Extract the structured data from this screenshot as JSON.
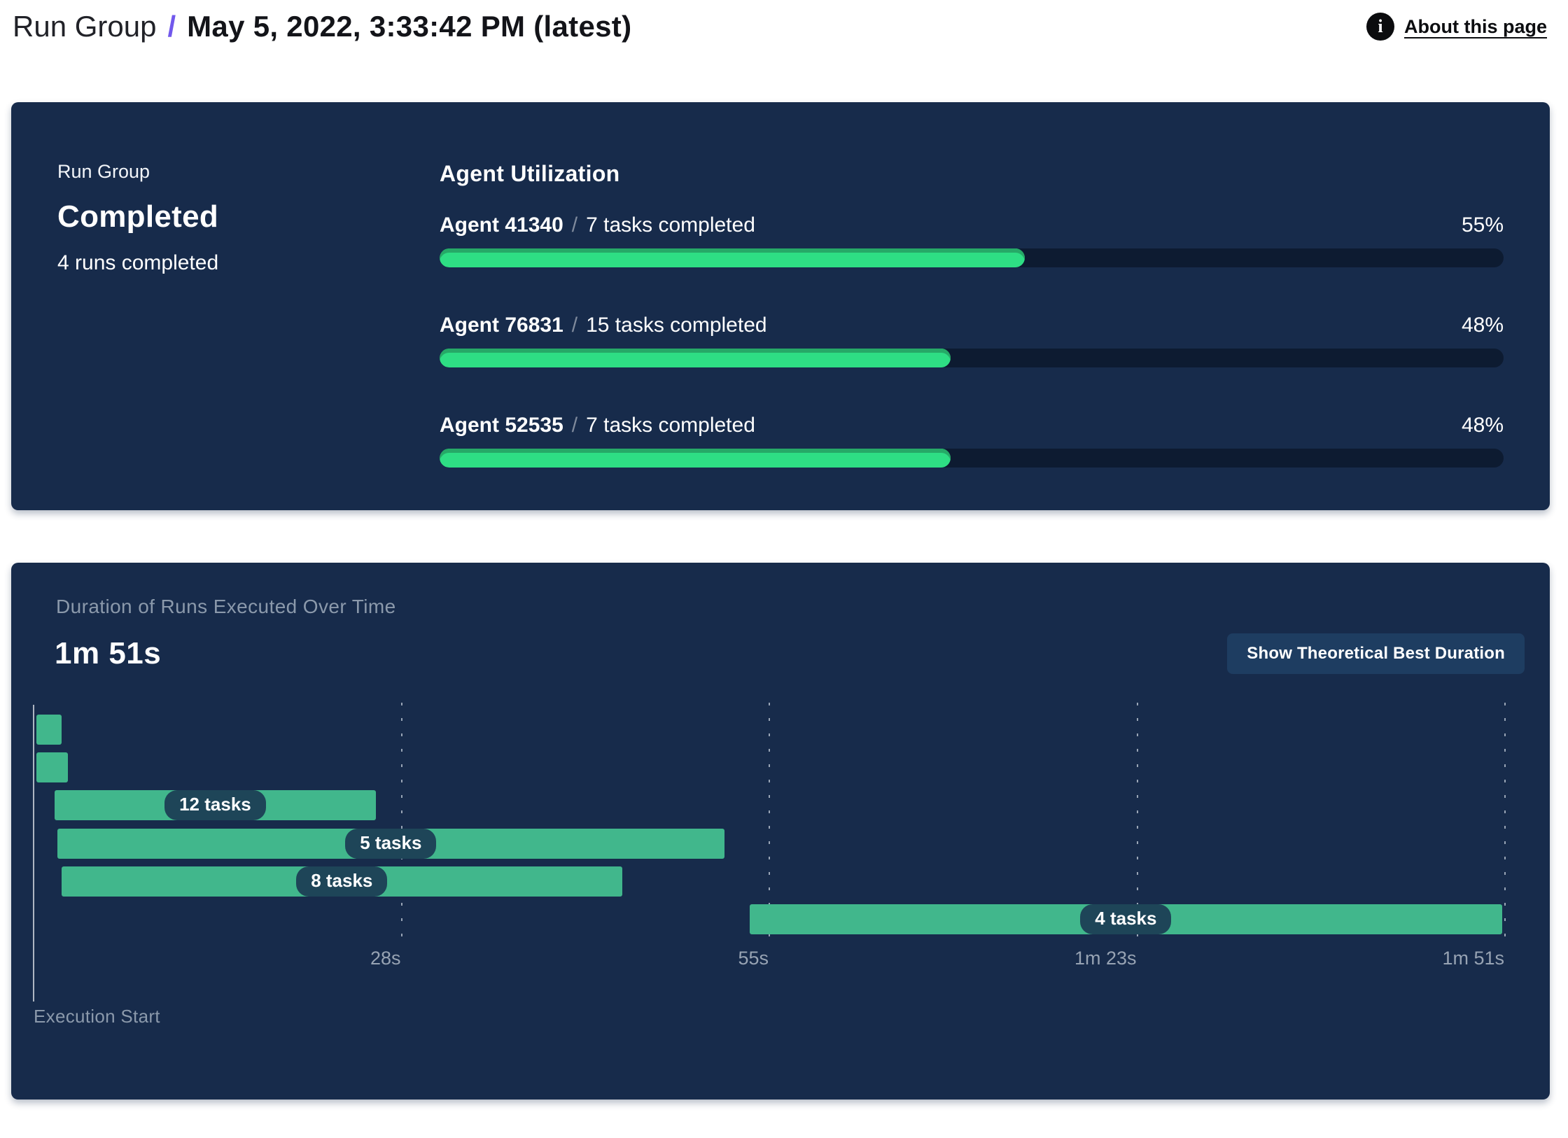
{
  "header": {
    "breadcrumb_root": "Run Group",
    "separator": "/",
    "title": "May 5, 2022, 3:33:42 PM (latest)",
    "about_link": "About this page",
    "about_icon": "info-icon"
  },
  "run_group": {
    "label": "Run Group",
    "status": "Completed",
    "runs_summary": "4 runs completed"
  },
  "utilization": {
    "heading": "Agent Utilization",
    "separator": "/",
    "agents": [
      {
        "name": "Agent 41340",
        "tasks": "7 tasks completed",
        "pct": 55
      },
      {
        "name": "Agent 76831",
        "tasks": "15 tasks completed",
        "pct": 48
      },
      {
        "name": "Agent 52535",
        "tasks": "7 tasks completed",
        "pct": 48
      }
    ]
  },
  "duration_card": {
    "button_label": "Show Theoretical Best Duration"
  },
  "chart_data": {
    "type": "gantt",
    "title": "Duration of Runs Executed Over Time",
    "total_duration": "1m 51s",
    "xlabel": "Execution Start",
    "time_domain_seconds": [
      0,
      111
    ],
    "grid": true,
    "legend": false,
    "ticks": [
      {
        "label": "28s",
        "t": 27.75
      },
      {
        "label": "55s",
        "t": 55.5
      },
      {
        "label": "1m 23s",
        "t": 83.25
      },
      {
        "label": "1m 51s",
        "t": 111
      }
    ],
    "runs": [
      {
        "start_s": 0.2,
        "end_s": 2.1,
        "label": ""
      },
      {
        "start_s": 0.2,
        "end_s": 2.6,
        "label": ""
      },
      {
        "start_s": 1.6,
        "end_s": 25.8,
        "label": "12 tasks"
      },
      {
        "start_s": 1.8,
        "end_s": 52.1,
        "label": "5 tasks"
      },
      {
        "start_s": 2.1,
        "end_s": 44.4,
        "label": "8 tasks"
      },
      {
        "start_s": 54.0,
        "end_s": 110.8,
        "label": "4 tasks"
      }
    ],
    "colors": {
      "card_bg": "#172b4b",
      "track": "#0d1b31",
      "progress_green": "#2ede84",
      "progress_green_shade": "#26a967",
      "gantt_green": "#41b78c",
      "pill_bg": "#1e4558",
      "button_bg": "#1e3d61",
      "muted_text": "#8b99ab",
      "accent_purple": "#7158ec"
    }
  }
}
